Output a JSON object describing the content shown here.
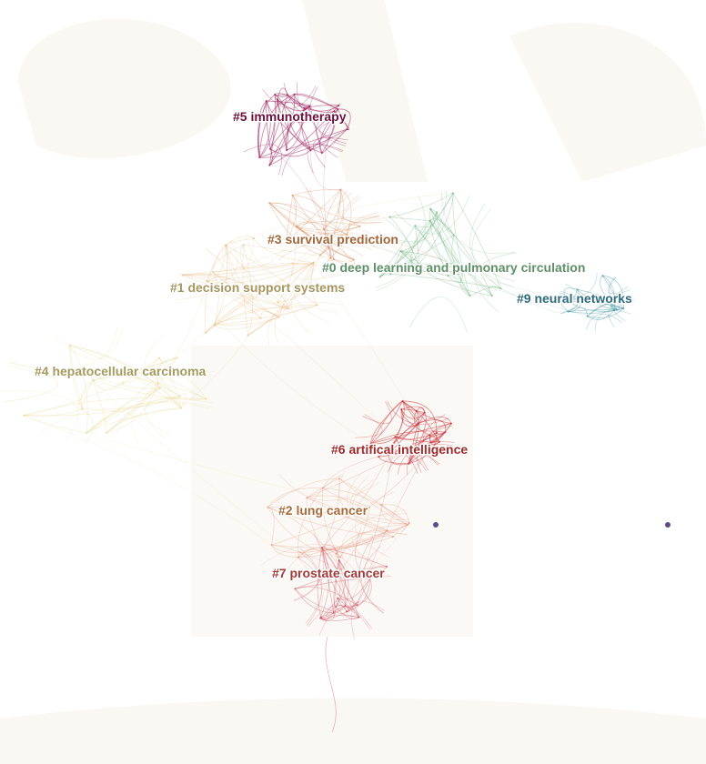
{
  "network": {
    "clusters": [
      {
        "id": "c5",
        "label": "#5 immunotherapy",
        "color": "#9e1f5e"
      },
      {
        "id": "c3",
        "label": "#3 survival prediction",
        "color": "#d08a55"
      },
      {
        "id": "c0",
        "label": "#0 deep learning and pulmonary circulation",
        "color": "#6aaf7a"
      },
      {
        "id": "c9",
        "label": "#9 neural networks",
        "color": "#4a9aa6"
      },
      {
        "id": "c1",
        "label": "#1 decision support systems",
        "color": "#e6b97e"
      },
      {
        "id": "c4",
        "label": "#4 hepatocellular carcinoma",
        "color": "#e6d488"
      },
      {
        "id": "c6",
        "label": "#6 artifical intelligence",
        "color": "#c92f3a"
      },
      {
        "id": "c2",
        "label": "#2 lung cancer",
        "color": "#e38e77"
      },
      {
        "id": "c7",
        "label": "#7 prostate cancer",
        "color": "#c9435a"
      }
    ],
    "label_colors": {
      "c5": "#6b0f3a",
      "c3": "#a2663a",
      "c0": "#5f8f67",
      "c9": "#2e6a80",
      "c1": "#a89660",
      "c4": "#a59a5f",
      "c6": "#a02a2a",
      "c2": "#a86a3a",
      "c7": "#a23a3a"
    },
    "node_color": "#5b4b8a"
  }
}
